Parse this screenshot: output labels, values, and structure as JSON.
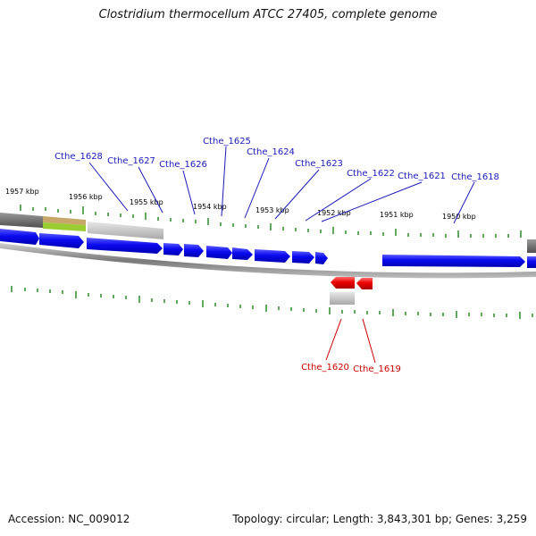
{
  "title": "Clostridium thermocellum ATCC 27405, complete genome",
  "accession": "Accession: NC_009012",
  "summary": "Topology: circular; Length: 3,843,301 bp; Genes: 3,259",
  "colors": {
    "forward_gene": "#0a0af0",
    "reverse_gene": "#ee0000",
    "forward_label": "#1a1ab8",
    "reverse_label": "#cc0000",
    "tick": "#2a8a2a",
    "backbone": "#888888",
    "feature_gray": "#bdbdbd",
    "feature_dark": "#777777",
    "feature_green": "#9acd32"
  },
  "kbp_labels": [
    "1957 kbp",
    "1956 kbp",
    "1955 kbp",
    "1954 kbp",
    "1953 kbp",
    "1952 kbp",
    "1951 kbp",
    "1950 kbp"
  ],
  "forward_genes": [
    "Cthe_1628",
    "Cthe_1627",
    "Cthe_1626",
    "Cthe_1625",
    "Cthe_1624",
    "Cthe_1623",
    "Cthe_1622",
    "Cthe_1621",
    "Cthe_1618"
  ],
  "reverse_genes": [
    "Cthe_1620",
    "Cthe_1619"
  ]
}
